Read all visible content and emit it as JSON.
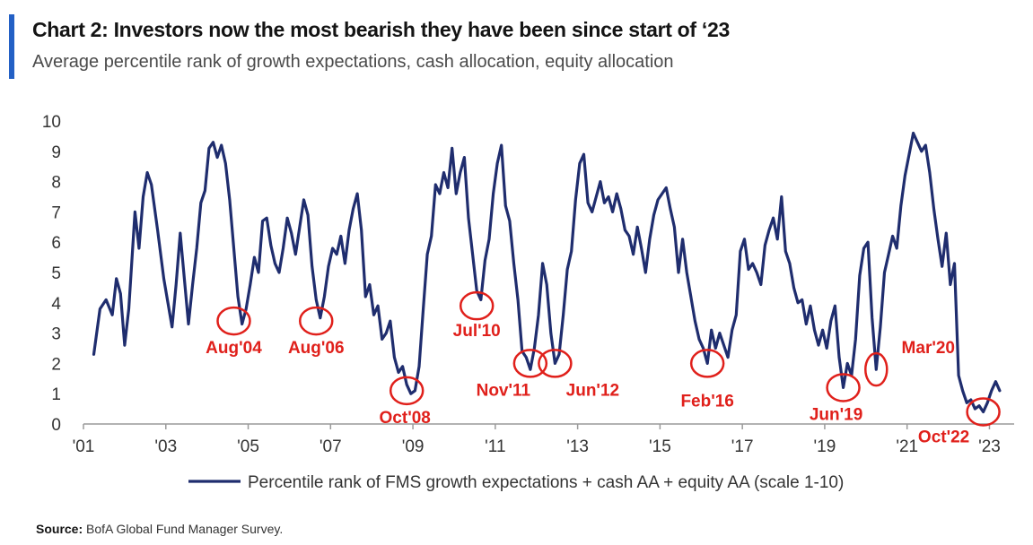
{
  "title": "Chart 2: Investors now the most bearish they have been since start of ‘23",
  "subtitle": "Average percentile rank of growth expectations, cash allocation, equity allocation",
  "source": {
    "label": "Source:",
    "text": "BofA Global Fund Manager Survey."
  },
  "colors": {
    "line": "#1f2d6e",
    "annotation": "#e0201b",
    "accent": "#2360c5",
    "axis": "#9a9a9a"
  },
  "chart_data": {
    "type": "line",
    "title": "Chart 2: Investors now the most bearish they have been since start of ‘23",
    "xlabel": "",
    "ylabel": "",
    "xlim": [
      2001.0,
      2023.6
    ],
    "ylim": [
      0,
      10
    ],
    "yticks": [
      "0",
      "1",
      "2",
      "3",
      "4",
      "5",
      "6",
      "7",
      "8",
      "9",
      "10"
    ],
    "xticks": [
      {
        "x": 2001,
        "label": "'01"
      },
      {
        "x": 2003,
        "label": "'03"
      },
      {
        "x": 2005,
        "label": "'05"
      },
      {
        "x": 2007,
        "label": "'07"
      },
      {
        "x": 2009,
        "label": "'09"
      },
      {
        "x": 2011,
        "label": "'11"
      },
      {
        "x": 2013,
        "label": "'13"
      },
      {
        "x": 2015,
        "label": "'15"
      },
      {
        "x": 2017,
        "label": "'17"
      },
      {
        "x": 2019,
        "label": "'19"
      },
      {
        "x": 2021,
        "label": "'21"
      },
      {
        "x": 2023,
        "label": "'23"
      }
    ],
    "grid": false,
    "legend_position": "bottom",
    "series": [
      {
        "name": "Percentile rank of FMS growth expectations + cash AA + equity AA (scale 1-10)",
        "points": [
          [
            2001.25,
            2.3
          ],
          [
            2001.4,
            3.8
          ],
          [
            2001.55,
            4.1
          ],
          [
            2001.7,
            3.6
          ],
          [
            2001.8,
            4.8
          ],
          [
            2001.9,
            4.3
          ],
          [
            2002.0,
            2.6
          ],
          [
            2002.1,
            3.8
          ],
          [
            2002.25,
            7.0
          ],
          [
            2002.35,
            5.8
          ],
          [
            2002.45,
            7.5
          ],
          [
            2002.55,
            8.3
          ],
          [
            2002.65,
            7.9
          ],
          [
            2002.8,
            6.4
          ],
          [
            2002.95,
            4.8
          ],
          [
            2003.05,
            4.0
          ],
          [
            2003.15,
            3.2
          ],
          [
            2003.25,
            4.6
          ],
          [
            2003.35,
            6.3
          ],
          [
            2003.45,
            4.8
          ],
          [
            2003.55,
            3.3
          ],
          [
            2003.65,
            4.6
          ],
          [
            2003.75,
            5.8
          ],
          [
            2003.85,
            7.3
          ],
          [
            2003.95,
            7.7
          ],
          [
            2004.05,
            9.1
          ],
          [
            2004.15,
            9.3
          ],
          [
            2004.25,
            8.8
          ],
          [
            2004.35,
            9.2
          ],
          [
            2004.45,
            8.6
          ],
          [
            2004.55,
            7.4
          ],
          [
            2004.65,
            5.8
          ],
          [
            2004.75,
            4.2
          ],
          [
            2004.85,
            3.3
          ],
          [
            2004.95,
            3.8
          ],
          [
            2005.05,
            4.6
          ],
          [
            2005.15,
            5.5
          ],
          [
            2005.25,
            5.0
          ],
          [
            2005.35,
            6.7
          ],
          [
            2005.45,
            6.8
          ],
          [
            2005.55,
            5.9
          ],
          [
            2005.65,
            5.3
          ],
          [
            2005.75,
            5.0
          ],
          [
            2005.85,
            5.8
          ],
          [
            2005.95,
            6.8
          ],
          [
            2006.05,
            6.3
          ],
          [
            2006.15,
            5.6
          ],
          [
            2006.25,
            6.5
          ],
          [
            2006.35,
            7.4
          ],
          [
            2006.45,
            6.9
          ],
          [
            2006.55,
            5.2
          ],
          [
            2006.65,
            4.1
          ],
          [
            2006.75,
            3.5
          ],
          [
            2006.85,
            4.2
          ],
          [
            2006.95,
            5.2
          ],
          [
            2007.05,
            5.8
          ],
          [
            2007.15,
            5.6
          ],
          [
            2007.25,
            6.2
          ],
          [
            2007.35,
            5.3
          ],
          [
            2007.45,
            6.4
          ],
          [
            2007.55,
            7.1
          ],
          [
            2007.65,
            7.6
          ],
          [
            2007.75,
            6.4
          ],
          [
            2007.85,
            4.2
          ],
          [
            2007.95,
            4.6
          ],
          [
            2008.05,
            3.6
          ],
          [
            2008.15,
            3.9
          ],
          [
            2008.25,
            2.8
          ],
          [
            2008.35,
            3.0
          ],
          [
            2008.45,
            3.4
          ],
          [
            2008.55,
            2.2
          ],
          [
            2008.65,
            1.7
          ],
          [
            2008.75,
            1.9
          ],
          [
            2008.85,
            1.3
          ],
          [
            2008.95,
            1.0
          ],
          [
            2009.05,
            1.1
          ],
          [
            2009.15,
            1.9
          ],
          [
            2009.25,
            3.8
          ],
          [
            2009.35,
            5.6
          ],
          [
            2009.45,
            6.2
          ],
          [
            2009.55,
            7.9
          ],
          [
            2009.65,
            7.6
          ],
          [
            2009.75,
            8.3
          ],
          [
            2009.85,
            7.8
          ],
          [
            2009.95,
            9.1
          ],
          [
            2010.05,
            7.6
          ],
          [
            2010.15,
            8.3
          ],
          [
            2010.25,
            8.8
          ],
          [
            2010.35,
            6.8
          ],
          [
            2010.45,
            5.6
          ],
          [
            2010.55,
            4.4
          ],
          [
            2010.65,
            4.1
          ],
          [
            2010.75,
            5.4
          ],
          [
            2010.85,
            6.1
          ],
          [
            2010.95,
            7.6
          ],
          [
            2011.05,
            8.6
          ],
          [
            2011.15,
            9.2
          ],
          [
            2011.25,
            7.2
          ],
          [
            2011.35,
            6.7
          ],
          [
            2011.45,
            5.3
          ],
          [
            2011.55,
            4.1
          ],
          [
            2011.65,
            2.4
          ],
          [
            2011.75,
            2.2
          ],
          [
            2011.85,
            1.8
          ],
          [
            2011.95,
            2.5
          ],
          [
            2012.05,
            3.6
          ],
          [
            2012.15,
            5.3
          ],
          [
            2012.25,
            4.6
          ],
          [
            2012.35,
            3.0
          ],
          [
            2012.45,
            2.0
          ],
          [
            2012.55,
            2.3
          ],
          [
            2012.65,
            3.6
          ],
          [
            2012.75,
            5.1
          ],
          [
            2012.85,
            5.7
          ],
          [
            2012.95,
            7.4
          ],
          [
            2013.05,
            8.6
          ],
          [
            2013.15,
            8.9
          ],
          [
            2013.25,
            7.3
          ],
          [
            2013.35,
            7.0
          ],
          [
            2013.45,
            7.5
          ],
          [
            2013.55,
            8.0
          ],
          [
            2013.65,
            7.3
          ],
          [
            2013.75,
            7.5
          ],
          [
            2013.85,
            7.0
          ],
          [
            2013.95,
            7.6
          ],
          [
            2014.05,
            7.1
          ],
          [
            2014.15,
            6.4
          ],
          [
            2014.25,
            6.2
          ],
          [
            2014.35,
            5.6
          ],
          [
            2014.45,
            6.5
          ],
          [
            2014.55,
            5.8
          ],
          [
            2014.65,
            5.0
          ],
          [
            2014.75,
            6.1
          ],
          [
            2014.85,
            6.9
          ],
          [
            2014.95,
            7.4
          ],
          [
            2015.05,
            7.6
          ],
          [
            2015.15,
            7.8
          ],
          [
            2015.25,
            7.1
          ],
          [
            2015.35,
            6.5
          ],
          [
            2015.45,
            5.0
          ],
          [
            2015.55,
            6.1
          ],
          [
            2015.65,
            5.0
          ],
          [
            2015.75,
            4.2
          ],
          [
            2015.85,
            3.4
          ],
          [
            2015.95,
            2.8
          ],
          [
            2016.05,
            2.5
          ],
          [
            2016.15,
            2.0
          ],
          [
            2016.25,
            3.1
          ],
          [
            2016.35,
            2.5
          ],
          [
            2016.45,
            3.0
          ],
          [
            2016.55,
            2.6
          ],
          [
            2016.65,
            2.2
          ],
          [
            2016.75,
            3.1
          ],
          [
            2016.85,
            3.6
          ],
          [
            2016.95,
            5.7
          ],
          [
            2017.05,
            6.1
          ],
          [
            2017.15,
            5.1
          ],
          [
            2017.25,
            5.3
          ],
          [
            2017.35,
            5.0
          ],
          [
            2017.45,
            4.6
          ],
          [
            2017.55,
            5.9
          ],
          [
            2017.65,
            6.4
          ],
          [
            2017.75,
            6.8
          ],
          [
            2017.85,
            6.1
          ],
          [
            2017.95,
            7.5
          ],
          [
            2018.05,
            5.7
          ],
          [
            2018.15,
            5.3
          ],
          [
            2018.25,
            4.5
          ],
          [
            2018.35,
            4.0
          ],
          [
            2018.45,
            4.1
          ],
          [
            2018.55,
            3.3
          ],
          [
            2018.65,
            3.9
          ],
          [
            2018.75,
            3.1
          ],
          [
            2018.85,
            2.6
          ],
          [
            2018.95,
            3.1
          ],
          [
            2019.05,
            2.5
          ],
          [
            2019.15,
            3.4
          ],
          [
            2019.25,
            3.9
          ],
          [
            2019.35,
            2.2
          ],
          [
            2019.45,
            1.2
          ],
          [
            2019.55,
            2.0
          ],
          [
            2019.65,
            1.6
          ],
          [
            2019.75,
            2.8
          ],
          [
            2019.85,
            4.9
          ],
          [
            2019.95,
            5.8
          ],
          [
            2020.05,
            6.0
          ],
          [
            2020.15,
            3.5
          ],
          [
            2020.25,
            1.8
          ],
          [
            2020.35,
            3.2
          ],
          [
            2020.45,
            5.0
          ],
          [
            2020.55,
            5.6
          ],
          [
            2020.65,
            6.2
          ],
          [
            2020.75,
            5.8
          ],
          [
            2020.85,
            7.2
          ],
          [
            2020.95,
            8.2
          ],
          [
            2021.05,
            8.9
          ],
          [
            2021.15,
            9.6
          ],
          [
            2021.25,
            9.3
          ],
          [
            2021.35,
            9.0
          ],
          [
            2021.45,
            9.2
          ],
          [
            2021.55,
            8.3
          ],
          [
            2021.65,
            7.1
          ],
          [
            2021.75,
            6.1
          ],
          [
            2021.85,
            5.2
          ],
          [
            2021.95,
            6.3
          ],
          [
            2022.05,
            4.6
          ],
          [
            2022.15,
            5.3
          ],
          [
            2022.25,
            1.6
          ],
          [
            2022.35,
            1.1
          ],
          [
            2022.45,
            0.7
          ],
          [
            2022.55,
            0.8
          ],
          [
            2022.65,
            0.5
          ],
          [
            2022.75,
            0.6
          ],
          [
            2022.85,
            0.4
          ],
          [
            2022.95,
            0.7
          ],
          [
            2023.05,
            1.1
          ],
          [
            2023.15,
            1.4
          ],
          [
            2023.25,
            1.1
          ]
        ]
      }
    ],
    "annotations": [
      {
        "label": "Aug'04",
        "x": 2004.65,
        "y": 3.4
      },
      {
        "label": "Aug'06",
        "x": 2006.65,
        "y": 3.4
      },
      {
        "label": "Oct'08",
        "x": 2008.85,
        "y": 1.1
      },
      {
        "label": "Jul'10",
        "x": 2010.55,
        "y": 3.9
      },
      {
        "label": "Nov'11",
        "x": 2011.85,
        "y": 2.0
      },
      {
        "label": "Jun'12",
        "x": 2012.45,
        "y": 2.0
      },
      {
        "label": "Feb'16",
        "x": 2016.15,
        "y": 2.0
      },
      {
        "label": "Jun'19",
        "x": 2019.45,
        "y": 1.2
      },
      {
        "label": "Mar'20",
        "x": 2020.25,
        "y": 1.8
      },
      {
        "label": "Oct'22",
        "x": 2022.85,
        "y": 0.4
      }
    ]
  }
}
